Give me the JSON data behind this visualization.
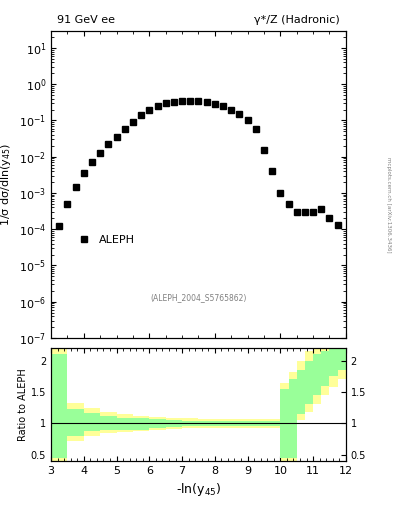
{
  "title_left": "91 GeV ee",
  "title_right": "γ*/Z (Hadronic)",
  "ylabel_main": "1/σ dσ/dln(y$_{45}$)",
  "xlabel": "-ln(y$_{45}$)",
  "ylabel_ratio": "Ratio to ALEPH",
  "watermark": "(ALEPH_2004_S5765862)",
  "side_label": "mcplots.cern.ch [arXiv:1306.3436]",
  "xlim": [
    3.0,
    12.0
  ],
  "ylim_main": [
    1e-07,
    30
  ],
  "ylim_ratio": [
    0.4,
    2.2
  ],
  "data_x": [
    3.25,
    3.5,
    3.75,
    4.0,
    4.25,
    4.5,
    4.75,
    5.0,
    5.25,
    5.5,
    5.75,
    6.0,
    6.25,
    6.5,
    6.75,
    7.0,
    7.25,
    7.5,
    7.75,
    8.0,
    8.25,
    8.5,
    8.75,
    9.0,
    9.25,
    9.5,
    9.75,
    10.0,
    10.25,
    10.5,
    10.75,
    11.0,
    11.25,
    11.5,
    11.75
  ],
  "data_y": [
    0.00012,
    0.0005,
    0.0015,
    0.0035,
    0.007,
    0.013,
    0.022,
    0.035,
    0.06,
    0.09,
    0.14,
    0.19,
    0.25,
    0.3,
    0.33,
    0.35,
    0.35,
    0.34,
    0.32,
    0.29,
    0.25,
    0.2,
    0.15,
    0.1,
    0.06,
    0.015,
    0.004,
    0.001,
    0.0005,
    0.0003,
    0.0003,
    0.0003,
    0.00035,
    0.0002,
    0.00013
  ],
  "marker_size": 4,
  "marker_color": "black",
  "legend_label": "ALEPH",
  "green_color": "#99ff99",
  "yellow_color": "#ffff99",
  "green_band_x": [
    3.0,
    3.5,
    4.0,
    4.5,
    5.0,
    5.5,
    6.0,
    6.5,
    7.0,
    7.5,
    8.0,
    8.5,
    9.0,
    9.5,
    10.0,
    10.25,
    10.5,
    10.75,
    11.0,
    11.25,
    11.5,
    11.75,
    12.0
  ],
  "green_band_lo": [
    0.45,
    0.8,
    0.87,
    0.9,
    0.9,
    0.9,
    0.92,
    0.94,
    0.95,
    0.96,
    0.96,
    0.96,
    0.96,
    0.96,
    0.45,
    0.45,
    1.15,
    1.3,
    1.45,
    1.6,
    1.75,
    1.85,
    1.95
  ],
  "green_band_hi": [
    2.1,
    1.22,
    1.17,
    1.12,
    1.09,
    1.08,
    1.06,
    1.05,
    1.04,
    1.04,
    1.04,
    1.04,
    1.04,
    1.04,
    1.55,
    1.7,
    1.85,
    2.0,
    2.1,
    2.15,
    2.2,
    2.3,
    2.4
  ],
  "yellow_band_lo": [
    0.4,
    0.72,
    0.8,
    0.84,
    0.86,
    0.87,
    0.89,
    0.91,
    0.92,
    0.93,
    0.93,
    0.93,
    0.93,
    0.93,
    0.4,
    0.4,
    1.05,
    1.18,
    1.3,
    1.45,
    1.58,
    1.7,
    1.8
  ],
  "yellow_band_hi": [
    2.25,
    1.32,
    1.25,
    1.18,
    1.14,
    1.12,
    1.1,
    1.09,
    1.08,
    1.07,
    1.07,
    1.07,
    1.07,
    1.07,
    1.65,
    1.82,
    2.0,
    2.15,
    2.22,
    2.28,
    2.35,
    2.45,
    2.55
  ]
}
